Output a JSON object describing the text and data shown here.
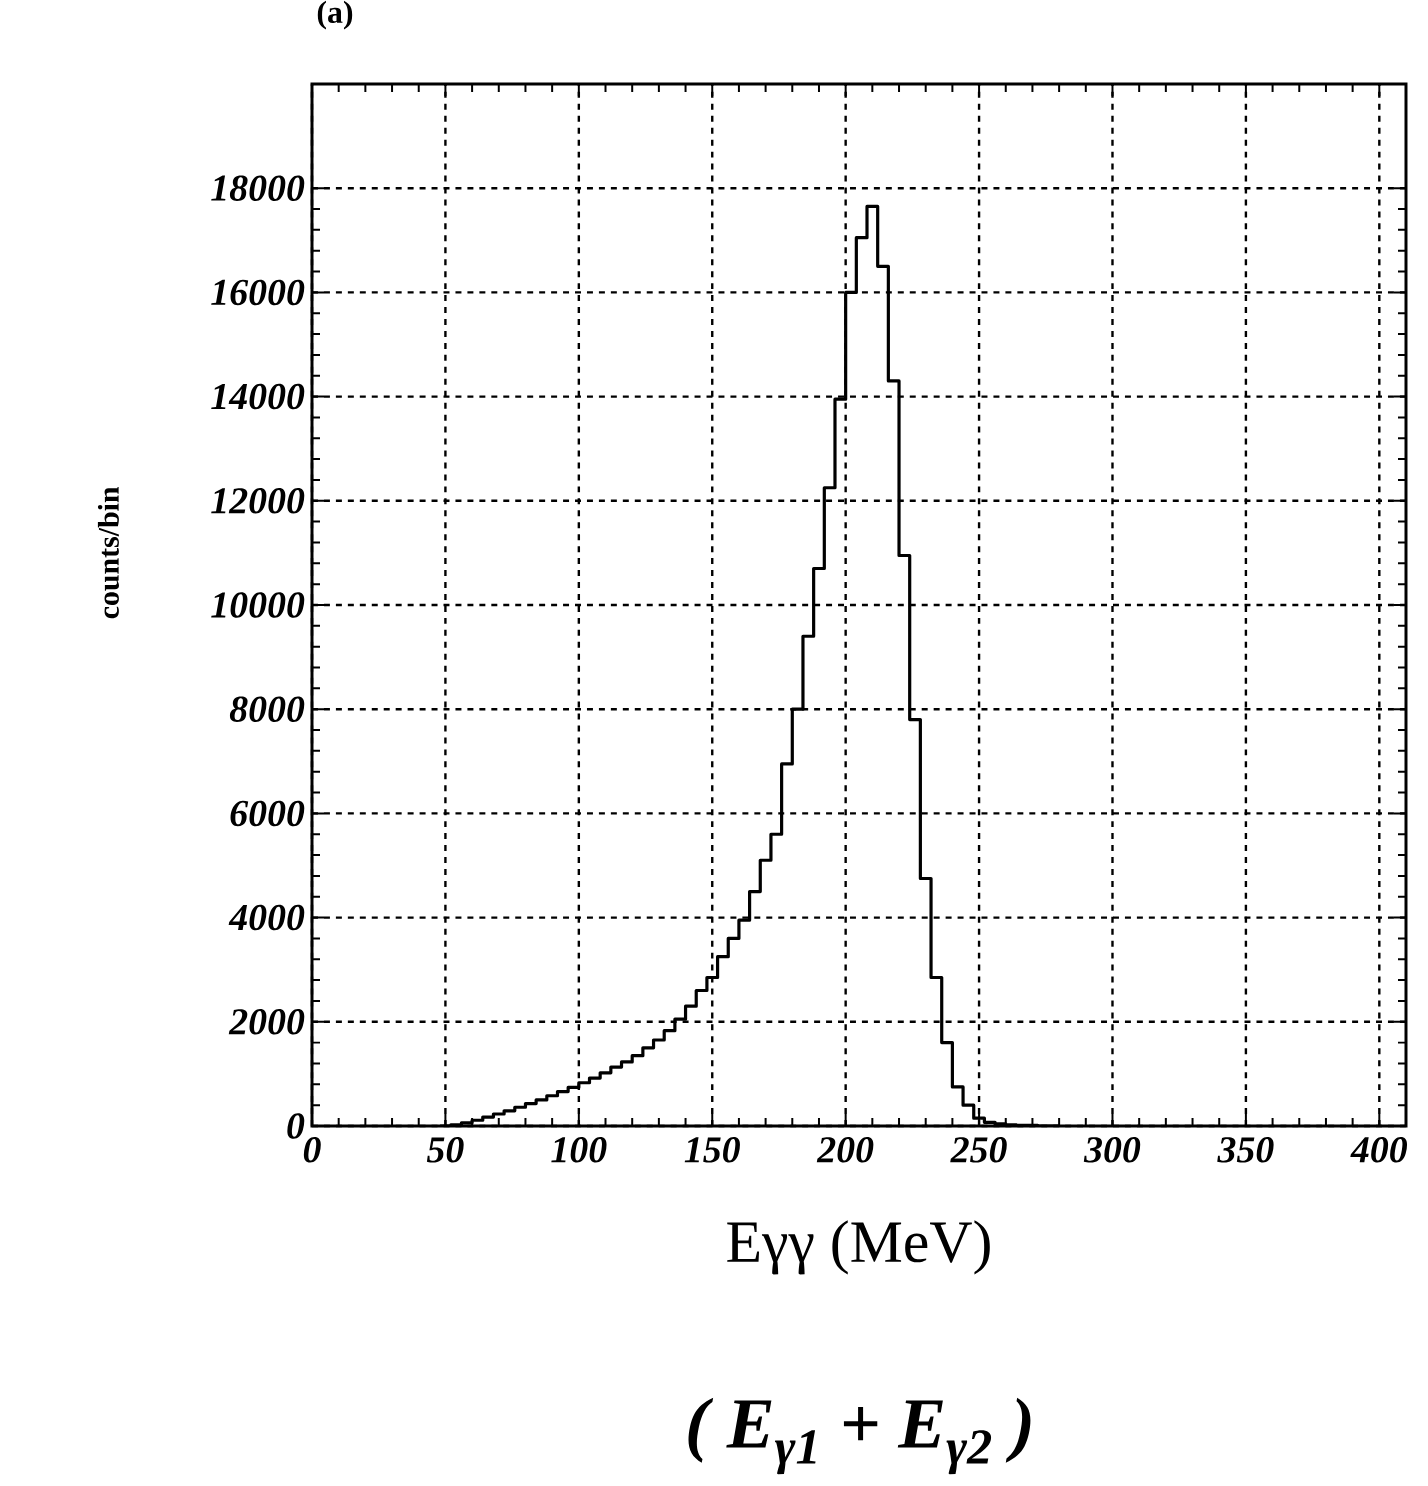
{
  "chart_data": {
    "type": "histogram",
    "xlabel": "Eγγ (MeV)",
    "ylabel": "counts/bin",
    "annotations": [
      "(a)",
      "( E$_{γ1}$ + E$_{γ2}$ )"
    ],
    "bins": [
      48,
      52,
      56,
      60,
      64,
      68,
      72,
      76,
      80,
      84,
      88,
      92,
      96,
      100,
      104,
      108,
      112,
      116,
      120,
      124,
      128,
      132,
      136,
      140,
      144,
      148,
      152,
      156,
      160,
      164,
      168,
      172,
      176,
      180,
      184,
      188,
      192,
      196,
      200,
      204,
      208,
      212,
      216,
      220,
      224,
      228,
      232,
      236,
      240,
      244,
      248,
      252,
      256,
      260,
      264,
      268,
      272,
      276,
      280
    ],
    "values": [
      0,
      20,
      60,
      110,
      170,
      230,
      290,
      360,
      430,
      500,
      580,
      660,
      740,
      830,
      920,
      1020,
      1130,
      1230,
      1350,
      1500,
      1650,
      1830,
      2050,
      2300,
      2600,
      2850,
      3250,
      3600,
      3950,
      4500,
      5100,
      5600,
      6950,
      8000,
      9400,
      10700,
      12250,
      13950,
      16000,
      17050,
      17650,
      16500,
      14300,
      10950,
      7800,
      4750,
      2850,
      1600,
      750,
      400,
      150,
      70,
      40,
      20,
      10,
      10,
      0,
      0
    ],
    "color": "#000000",
    "xlim": [
      0,
      410
    ],
    "ylim": [
      0,
      20000
    ],
    "xticks": [
      0,
      50,
      100,
      150,
      200,
      250,
      300,
      350,
      400
    ],
    "yticks": [
      0,
      2000,
      4000,
      6000,
      8000,
      10000,
      12000,
      14000,
      16000,
      18000
    ],
    "grid": true
  }
}
